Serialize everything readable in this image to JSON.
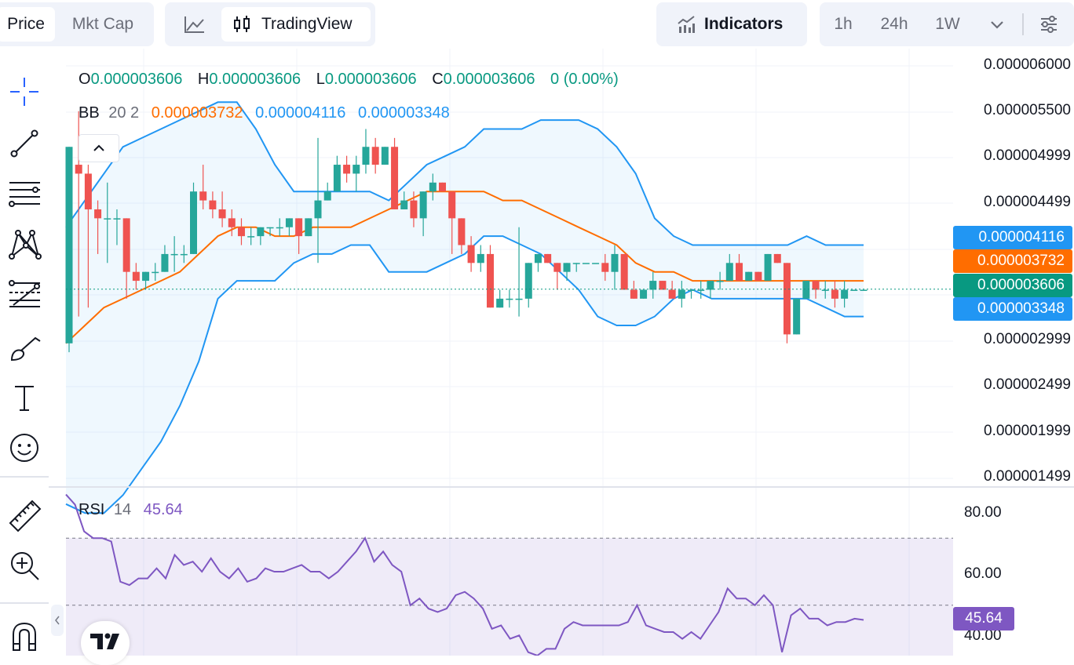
{
  "toolbar": {
    "price_tab": "Price",
    "mktcap_tab": "Mkt Cap",
    "tradingview_label": "TradingView",
    "indicators_label": "Indicators",
    "intervals": [
      "1h",
      "24h",
      "1W"
    ]
  },
  "legend": {
    "o_label": "O",
    "o_value": "0.000003606",
    "h_label": "H",
    "h_value": "0.000003606",
    "l_label": "L",
    "l_value": "0.000003606",
    "c_label": "C",
    "c_value": "0.000003606",
    "change": "0 (0.00%)",
    "bb_label": "BB",
    "bb_params": "20 2",
    "bb_basis": "0.000003732",
    "bb_upper": "0.000004116",
    "bb_lower": "0.000003348"
  },
  "rsi": {
    "label": "RSI",
    "param": "14",
    "value": "45.64"
  },
  "price_axis": [
    "0.000006000",
    "0.000005500",
    "0.000004999",
    "0.000004499",
    "0.000002999",
    "0.000002499",
    "0.000001999",
    "0.000001499"
  ],
  "rsi_axis": [
    "80.00",
    "60.00",
    "40.00"
  ],
  "badges": {
    "upper": "0.000004116",
    "basis": "0.000003732",
    "last": "0.000003606",
    "lower": "0.000003348",
    "rsi": "45.64"
  },
  "colors": {
    "up": "#26a69a",
    "down": "#ef5350",
    "bb_basis": "#ff6d00",
    "bb_band": "#2196f3",
    "rsi": "#7e57c2",
    "text_green": "#089981"
  },
  "chart_data": {
    "type": "candlestick",
    "price_range": [
      1.4e-06,
      6.3e-06
    ],
    "last_price": 3.606e-06,
    "candles": [
      [
        3e-06,
        5.2e-06,
        2.9e-06,
        5.2e-06
      ],
      [
        5e-06,
        5.6e-06,
        3.3e-06,
        4.9e-06
      ],
      [
        4.9e-06,
        5e-06,
        3.4e-06,
        4.5e-06
      ],
      [
        4.5e-06,
        4.6e-06,
        4e-06,
        4.4e-06
      ],
      [
        4.4e-06,
        4.8e-06,
        3.9e-06,
        4.4e-06
      ],
      [
        4.4e-06,
        4.5e-06,
        4.1e-06,
        4.4e-06
      ],
      [
        4.4e-06,
        4.4e-06,
        3.5e-06,
        3.8e-06
      ],
      [
        3.8e-06,
        3.9e-06,
        3.6e-06,
        3.7e-06
      ],
      [
        3.7e-06,
        3.8e-06,
        3.6e-06,
        3.8e-06
      ],
      [
        3.8e-06,
        3.9e-06,
        3.7e-06,
        3.8e-06
      ],
      [
        3.8e-06,
        4.1e-06,
        3.8e-06,
        4e-06
      ],
      [
        4e-06,
        4.2e-06,
        3.8e-06,
        4e-06
      ],
      [
        4e-06,
        4.1e-06,
        3.9e-06,
        4e-06
      ],
      [
        4e-06,
        4.8e-06,
        4e-06,
        4.7e-06
      ],
      [
        4.7e-06,
        5e-06,
        4.5e-06,
        4.6e-06
      ],
      [
        4.6e-06,
        4.7e-06,
        4.4e-06,
        4.5e-06
      ],
      [
        4.5e-06,
        4.7e-06,
        4.3e-06,
        4.4e-06
      ],
      [
        4.4e-06,
        4.5e-06,
        4.2e-06,
        4.3e-06
      ],
      [
        4.3e-06,
        4.4e-06,
        4.1e-06,
        4.2e-06
      ],
      [
        4.2e-06,
        4.3e-06,
        4.1e-06,
        4.2e-06
      ],
      [
        4.2e-06,
        4.3e-06,
        4.1e-06,
        4.3e-06
      ],
      [
        4.3e-06,
        4.3e-06,
        4.2e-06,
        4.3e-06
      ],
      [
        4.3e-06,
        4.4e-06,
        4.2e-06,
        4.3e-06
      ],
      [
        4.3e-06,
        4.4e-06,
        4.2e-06,
        4.4e-06
      ],
      [
        4.4e-06,
        4.4e-06,
        4e-06,
        4.2e-06
      ],
      [
        4.2e-06,
        4.4e-06,
        4.2e-06,
        4.4e-06
      ],
      [
        4.4e-06,
        5.3e-06,
        3.9e-06,
        4.6e-06
      ],
      [
        4.6e-06,
        4.8e-06,
        4.6e-06,
        4.7e-06
      ],
      [
        4.7e-06,
        5.1e-06,
        4.7e-06,
        5e-06
      ],
      [
        5e-06,
        5.1e-06,
        4.8e-06,
        4.9e-06
      ],
      [
        4.9e-06,
        5.1e-06,
        4.7e-06,
        5e-06
      ],
      [
        5e-06,
        5.4e-06,
        4.9e-06,
        5.2e-06
      ],
      [
        5.2e-06,
        5.3e-06,
        4.9e-06,
        5e-06
      ],
      [
        5e-06,
        5.2e-06,
        5e-06,
        5.2e-06
      ],
      [
        5.2e-06,
        5.3e-06,
        4.5e-06,
        4.5e-06
      ],
      [
        4.5e-06,
        4.7e-06,
        4.5e-06,
        4.6e-06
      ],
      [
        4.6e-06,
        4.7e-06,
        4.3e-06,
        4.4e-06
      ],
      [
        4.4e-06,
        4.7e-06,
        4.2e-06,
        4.7e-06
      ],
      [
        4.7e-06,
        4.9e-06,
        4.6e-06,
        4.8e-06
      ],
      [
        4.8e-06,
        4.8e-06,
        4.7e-06,
        4.7e-06
      ],
      [
        4.7e-06,
        4.7e-06,
        4e-06,
        4.4e-06
      ],
      [
        4.4e-06,
        4.4e-06,
        4e-06,
        4.1e-06
      ],
      [
        4.1e-06,
        4.2e-06,
        3.8e-06,
        3.9e-06
      ],
      [
        3.9e-06,
        4.1e-06,
        3.8e-06,
        4e-06
      ],
      [
        4e-06,
        4.1e-06,
        3.4e-06,
        3.4e-06
      ],
      [
        3.4e-06,
        3.6e-06,
        3.4e-06,
        3.5e-06
      ],
      [
        3.5e-06,
        3.6e-06,
        3.4e-06,
        3.5e-06
      ],
      [
        3.5e-06,
        4.3e-06,
        3.3e-06,
        3.5e-06
      ],
      [
        3.5e-06,
        3.9e-06,
        3.4e-06,
        3.9e-06
      ],
      [
        3.9e-06,
        4e-06,
        3.8e-06,
        4e-06
      ],
      [
        4e-06,
        4e-06,
        3.9e-06,
        3.9e-06
      ],
      [
        3.9e-06,
        3.9e-06,
        3.6e-06,
        3.8e-06
      ],
      [
        3.8e-06,
        3.9e-06,
        3.7e-06,
        3.9e-06
      ],
      [
        3.9e-06,
        3.9e-06,
        3.8e-06,
        3.9e-06
      ],
      [
        3.9e-06,
        3.9e-06,
        3.9e-06,
        3.9e-06
      ],
      [
        3.9e-06,
        3.9e-06,
        3.9e-06,
        3.9e-06
      ],
      [
        3.9e-06,
        4e-06,
        3.7e-06,
        3.8e-06
      ],
      [
        3.8e-06,
        4.1e-06,
        3.6e-06,
        4e-06
      ],
      [
        4e-06,
        4e-06,
        3.6e-06,
        3.6e-06
      ],
      [
        3.6e-06,
        3.7e-06,
        3.5e-06,
        3.5e-06
      ],
      [
        3.5e-06,
        3.6e-06,
        3.5e-06,
        3.6e-06
      ],
      [
        3.6e-06,
        3.8e-06,
        3.5e-06,
        3.7e-06
      ],
      [
        3.7e-06,
        3.7e-06,
        3.6e-06,
        3.6e-06
      ],
      [
        3.6e-06,
        3.7e-06,
        3.5e-06,
        3.5e-06
      ],
      [
        3.5e-06,
        3.7e-06,
        3.4e-06,
        3.6e-06
      ],
      [
        3.6e-06,
        3.6e-06,
        3.5e-06,
        3.6e-06
      ],
      [
        3.6e-06,
        3.7e-06,
        3.5e-06,
        3.6e-06
      ],
      [
        3.6e-06,
        3.7e-06,
        3.5e-06,
        3.7e-06
      ],
      [
        3.7e-06,
        3.8e-06,
        3.6e-06,
        3.7e-06
      ],
      [
        3.7e-06,
        4e-06,
        3.7e-06,
        3.9e-06
      ],
      [
        3.9e-06,
        4e-06,
        3.7e-06,
        3.7e-06
      ],
      [
        3.7e-06,
        3.8e-06,
        3.7e-06,
        3.8e-06
      ],
      [
        3.8e-06,
        3.8e-06,
        3.7e-06,
        3.7e-06
      ],
      [
        3.7e-06,
        4e-06,
        3.7e-06,
        4e-06
      ],
      [
        4e-06,
        4e-06,
        3.9e-06,
        3.9e-06
      ],
      [
        3.9e-06,
        3.9e-06,
        3e-06,
        3.1e-06
      ],
      [
        3.1e-06,
        3.5e-06,
        3.1e-06,
        3.5e-06
      ],
      [
        3.5e-06,
        3.7e-06,
        3.5e-06,
        3.7e-06
      ],
      [
        3.7e-06,
        3.7e-06,
        3.5e-06,
        3.6e-06
      ],
      [
        3.6e-06,
        3.7e-06,
        3.5e-06,
        3.6e-06
      ],
      [
        3.6e-06,
        3.7e-06,
        3.4e-06,
        3.5e-06
      ],
      [
        3.5e-06,
        3.7e-06,
        3.4e-06,
        3.6e-06
      ],
      [
        3.6e-06,
        3.6e-06,
        3.6e-06,
        3.6e-06
      ],
      [
        3.6e-06,
        3.6e-06,
        3.6e-06,
        3.6e-06
      ]
    ],
    "bb_upper": [
      4.3e-06,
      4.6e-06,
      4.9e-06,
      5.2e-06,
      5.3e-06,
      5.4e-06,
      5.5e-06,
      5.6e-06,
      5.7e-06,
      5.7e-06,
      5.4e-06,
      5e-06,
      4.7e-06,
      4.7e-06,
      4.7e-06,
      4.7e-06,
      4.7e-06,
      4.6e-06,
      4.8e-06,
      5e-06,
      5.1e-06,
      5.2e-06,
      5.4e-06,
      5.4e-06,
      5.4e-06,
      5.5e-06,
      5.5e-06,
      5.5e-06,
      5.4e-06,
      5.2e-06,
      4.9e-06,
      4.4e-06,
      4.2e-06,
      4.1e-06,
      4.1e-06,
      4.1e-06,
      4.1e-06,
      4.1e-06,
      4.1e-06,
      4.2e-06,
      4.1e-06,
      4.1e-06,
      4.1e-06
    ],
    "bb_basis": [
      3e-06,
      3.2e-06,
      3.4e-06,
      3.5e-06,
      3.6e-06,
      3.7e-06,
      3.8e-06,
      4e-06,
      4.2e-06,
      4.3e-06,
      4.3e-06,
      4.2e-06,
      4.2e-06,
      4.3e-06,
      4.3e-06,
      4.3e-06,
      4.4e-06,
      4.5e-06,
      4.6e-06,
      4.7e-06,
      4.7e-06,
      4.7e-06,
      4.7e-06,
      4.6e-06,
      4.6e-06,
      4.5e-06,
      4.4e-06,
      4.3e-06,
      4.2e-06,
      4.1e-06,
      3.9e-06,
      3.8e-06,
      3.8e-06,
      3.7e-06,
      3.7e-06,
      3.7e-06,
      3.7e-06,
      3.7e-06,
      3.7e-06,
      3.7e-06,
      3.7e-06,
      3.7e-06,
      3.7e-06
    ],
    "bb_lower": [
      1.2e-06,
      1.1e-06,
      1.1e-06,
      1.3e-06,
      1.6e-06,
      1.9e-06,
      2.3e-06,
      2.8e-06,
      3.5e-06,
      3.7e-06,
      3.7e-06,
      3.7e-06,
      3.9e-06,
      4e-06,
      4e-06,
      4.1e-06,
      4.1e-06,
      3.8e-06,
      3.8e-06,
      3.8e-06,
      3.9e-06,
      4e-06,
      4.2e-06,
      4.2e-06,
      4.1e-06,
      4e-06,
      3.8e-06,
      3.6e-06,
      3.3e-06,
      3.2e-06,
      3.2e-06,
      3.3e-06,
      3.5e-06,
      3.6e-06,
      3.5e-06,
      3.5e-06,
      3.5e-06,
      3.5e-06,
      3.5e-06,
      3.5e-06,
      3.4e-06,
      3.3e-06,
      3.3e-06
    ],
    "rsi_range": [
      35,
      85
    ],
    "rsi_levels": [
      70,
      50
    ],
    "rsi": [
      83,
      80,
      72,
      70,
      70,
      69,
      57,
      56,
      58,
      58,
      61,
      58,
      65,
      62,
      63,
      60,
      64,
      60,
      58,
      61,
      57,
      58,
      61,
      60,
      60,
      61,
      62,
      60,
      60,
      58,
      60,
      63,
      66,
      70,
      63,
      66,
      62,
      60,
      50,
      52,
      49,
      48,
      49,
      53,
      54,
      52,
      49,
      43,
      44,
      40,
      41,
      36,
      35,
      37,
      37,
      43,
      45,
      44,
      44,
      44,
      44,
      44,
      45,
      50,
      44,
      43,
      42,
      42,
      40,
      42,
      40,
      44,
      48,
      55,
      52,
      52,
      50,
      53,
      50,
      36,
      47,
      49,
      46,
      46,
      44,
      45,
      45,
      46,
      45.64
    ]
  }
}
